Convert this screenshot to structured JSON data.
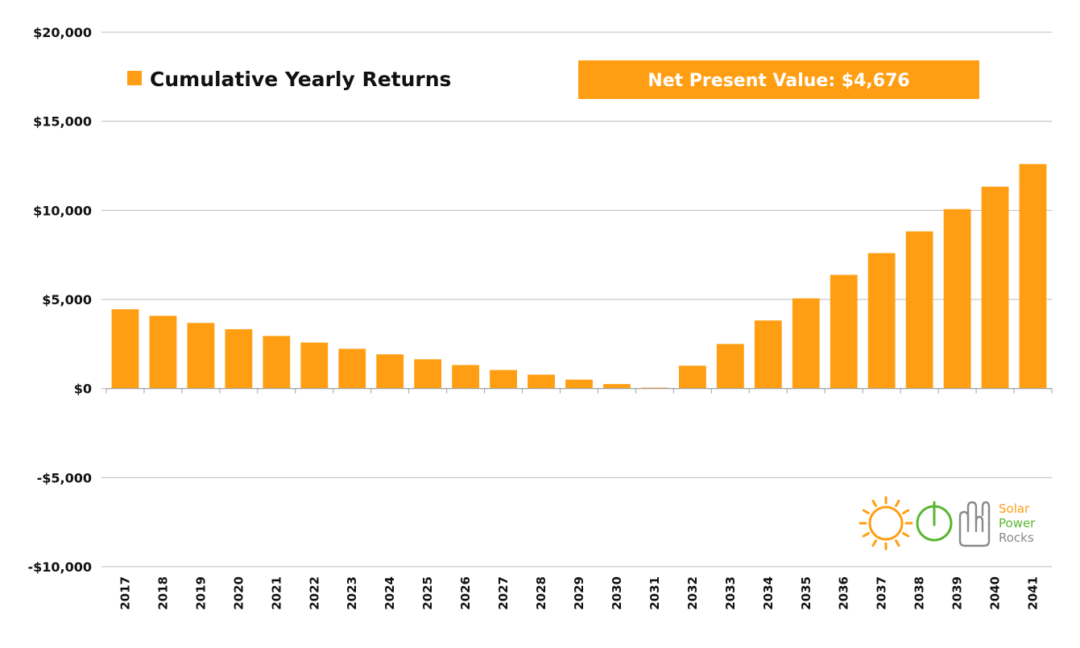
{
  "colors": {
    "bar": "#FF9E12",
    "grid": "#BDBDBD",
    "axis": "#9E9E9E",
    "npv_box": "#FF9E12",
    "logo_green": "#5BB531",
    "logo_gray": "#8A8A8A"
  },
  "chart_data": {
    "type": "bar",
    "title": "",
    "xlabel": "",
    "ylabel": "",
    "ylim": [
      -10000,
      20000
    ],
    "yticks": [
      20000,
      15000,
      10000,
      5000,
      0,
      -5000,
      -10000
    ],
    "ytick_labels": [
      "$20,000",
      "$15,000",
      "$10,000",
      "$5,000",
      "$0",
      "-$5,000",
      "-$10,000"
    ],
    "categories": [
      "2017",
      "2018",
      "2019",
      "2020",
      "2021",
      "2022",
      "2023",
      "2024",
      "2025",
      "2026",
      "2027",
      "2028",
      "2029",
      "2030",
      "2031",
      "2032",
      "2033",
      "2034",
      "2035",
      "2036",
      "2037",
      "2038",
      "2039",
      "2040",
      "2041"
    ],
    "series": [
      {
        "name": "Cumulative Yearly Returns",
        "values": [
          4450,
          4080,
          3680,
          3330,
          2950,
          2580,
          2230,
          1920,
          1640,
          1320,
          1040,
          780,
          500,
          250,
          50,
          1280,
          2500,
          3820,
          5060,
          6380,
          7600,
          8820,
          10070,
          11330,
          12600
        ]
      }
    ],
    "legend": {
      "placement": "top-left",
      "label": "Cumulative Yearly Returns"
    },
    "grid": true,
    "annotation": "Net Present Value: $4,676"
  },
  "logo": {
    "line1": "Solar",
    "line2": "Power",
    "line3": "Rocks",
    "icons": [
      "sun-icon",
      "power-icon",
      "rock-hand-icon"
    ]
  }
}
